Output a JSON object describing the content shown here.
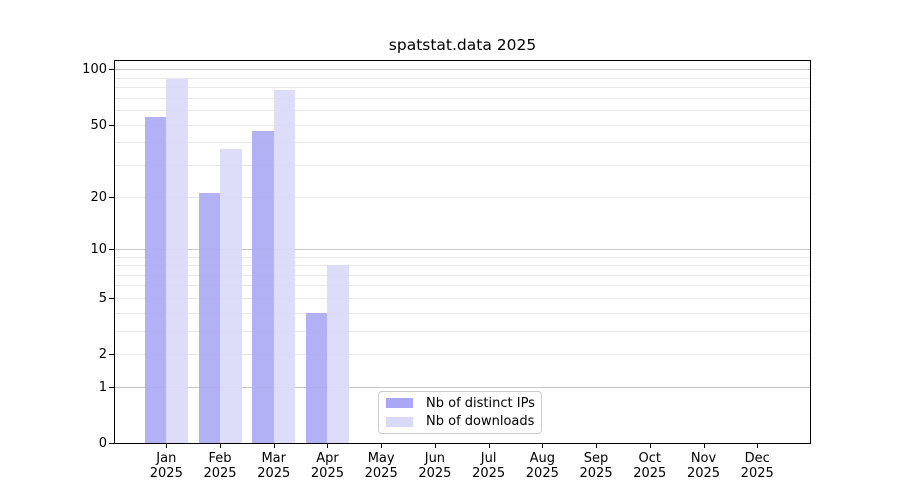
{
  "title": "spatstat.data 2025",
  "chart_data": {
    "type": "bar",
    "title": "spatstat.data 2025",
    "categories": [
      "Jan",
      "Feb",
      "Mar",
      "Apr",
      "May",
      "Jun",
      "Jul",
      "Aug",
      "Sep",
      "Oct",
      "Nov",
      "Dec"
    ],
    "year_label": "2025",
    "series": [
      {
        "name": "Nb of distinct IPs",
        "color": "#a9a9f3",
        "values": [
          55,
          21,
          46,
          4,
          0,
          0,
          0,
          0,
          0,
          0,
          0,
          0
        ]
      },
      {
        "name": "Nb of downloads",
        "color": "#d9d9f9",
        "values": [
          89,
          37,
          77,
          8,
          0,
          0,
          0,
          0,
          0,
          0,
          0,
          0
        ]
      }
    ],
    "y_axis": {
      "scale": "log1p",
      "ticks": [
        0,
        1,
        2,
        5,
        10,
        20,
        50,
        100
      ],
      "max": 111,
      "major_gridlines": [
        1,
        10,
        100
      ],
      "minor_gridlines": [
        2,
        3,
        4,
        5,
        6,
        7,
        8,
        9,
        20,
        30,
        40,
        50,
        60,
        70,
        80,
        90
      ]
    },
    "legend_position": "lower center",
    "grid": true
  },
  "colors": {
    "bar_distinct_ips": "#a9a9f3",
    "bar_downloads": "#d9d9f9",
    "gridline_major": "#c6c6c6",
    "gridline_minor": "#e8e8e8",
    "axis_spine": "#000000",
    "legend_border": "#cccccc",
    "background": "#ffffff"
  }
}
